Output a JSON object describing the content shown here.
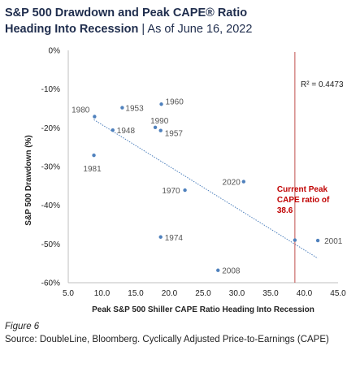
{
  "header": {
    "title_line1": "S&P 500 Drawdown and Peak CAPE® Ratio",
    "title_line2_bold": "Heading Into Recession",
    "title_line2_sep": " | ",
    "title_line2_light": "As of June 16, 2022"
  },
  "footer": {
    "figure_label": "Figure 6",
    "source": "Source: DoubleLine, Bloomberg. Cyclically Adjusted Price-to-Earnings (CAPE)"
  },
  "colors": {
    "points": "#4f81bd",
    "trendline": "#4f81bd",
    "marker_line": "#c0504d",
    "annotation": "#c00000",
    "axis": "#bfbfbf"
  },
  "chart_data": {
    "type": "scatter",
    "title": "S&P 500 Drawdown and Peak CAPE® Ratio Heading Into Recession | As of June 16, 2022",
    "xlabel": "Peak S&P 500 Shiller CAPE Ratio Heading Into Recession",
    "ylabel": "S&P 500 Drawdown (%)",
    "xlim": [
      5,
      45
    ],
    "ylim": [
      -60,
      0
    ],
    "xticks": [
      "5.0",
      "10.0",
      "15.0",
      "20.0",
      "25.0",
      "30.0",
      "35.0",
      "40.0",
      "45.0"
    ],
    "yticks": [
      "0%",
      "-10%",
      "-20%",
      "-30%",
      "-40%",
      "-50%",
      "-60%"
    ],
    "grid": false,
    "points": [
      {
        "label": "1980",
        "x": 8.9,
        "y": -17.1
      },
      {
        "label": "1953",
        "x": 13.0,
        "y": -14.8
      },
      {
        "label": "1960",
        "x": 18.8,
        "y": -13.9
      },
      {
        "label": "1948",
        "x": 11.6,
        "y": -20.6
      },
      {
        "label": "1990",
        "x": 17.9,
        "y": -19.9
      },
      {
        "label": "1957",
        "x": 18.7,
        "y": -20.7
      },
      {
        "label": "1981",
        "x": 8.8,
        "y": -27.1
      },
      {
        "label": "2020",
        "x": 31.0,
        "y": -33.9
      },
      {
        "label": "1970",
        "x": 22.3,
        "y": -36.1
      },
      {
        "label": "1974",
        "x": 18.7,
        "y": -48.2
      },
      {
        "label": "2001",
        "x": 42.0,
        "y": -49.1
      },
      {
        "label": "2008",
        "x": 27.2,
        "y": -56.8
      }
    ],
    "trendline": {
      "x": [
        8.8,
        42.0
      ],
      "y": [
        -17.9,
        -53.7
      ]
    },
    "r_squared_label": "R² = 0.4473",
    "reference_line": {
      "x": 38.6
    },
    "annotation": {
      "lines": [
        "Current Peak",
        "CAPE ratio of",
        "38.6"
      ],
      "x": 38.6,
      "y": -49.0
    }
  }
}
